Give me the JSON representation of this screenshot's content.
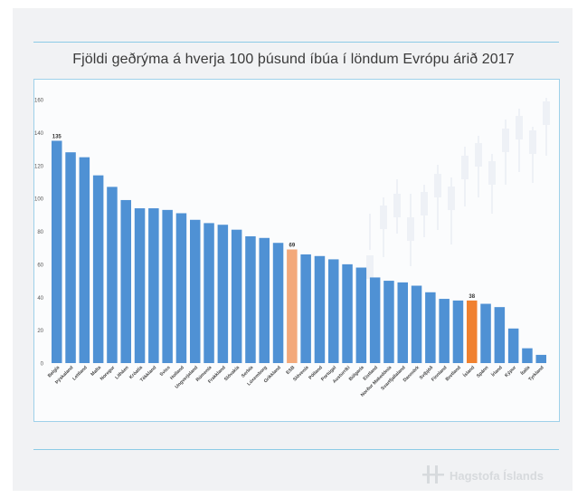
{
  "chart_data": {
    "type": "bar",
    "title": "Fjöldi geðrýma á hverja 100 þúsund íbúa í löndum Evrópu árið 2017",
    "xlabel": "",
    "ylabel": "",
    "ylim": [
      0,
      160
    ],
    "yticks": [
      0,
      20,
      40,
      60,
      80,
      100,
      120,
      140,
      160
    ],
    "grid": false,
    "categories": [
      "Belgía",
      "Þýskaland",
      "Lettland",
      "Malta",
      "Noregur",
      "Litháen",
      "Króatía",
      "Tékkland",
      "Sviss",
      "Holland",
      "Ungverjaland",
      "Rúmenía",
      "Frakkland",
      "Slóvakía",
      "Serbía",
      "Lúxemborg",
      "Grikkland",
      "ESB",
      "Slóvenía",
      "Pólland",
      "Portúgal",
      "Austurríki",
      "Búlgaría",
      "Eistland",
      "Norður Makedónía",
      "Svartfjallaland",
      "Danmörk",
      "Svíþjóð",
      "Finnland",
      "Bretland",
      "Ísland",
      "Spánn",
      "Írland",
      "Kýpur",
      "Ítalía",
      "Tyrkland"
    ],
    "values": [
      135,
      128,
      125,
      114,
      107,
      99,
      94,
      94,
      93,
      91,
      87,
      85,
      84,
      81,
      77,
      76,
      73,
      69,
      66,
      65,
      63,
      60,
      58,
      52,
      50,
      49,
      47,
      43,
      39,
      38,
      38,
      36,
      34,
      21,
      9,
      5
    ],
    "data_labels": [
      {
        "category": "Belgía",
        "text": "135"
      },
      {
        "category": "ESB",
        "text": "69"
      },
      {
        "category": "Ísland",
        "text": "38"
      }
    ],
    "colors": {
      "default": "#4f91d4",
      "ESB": "#f3a97a",
      "Ísland": "#f0812f"
    }
  },
  "branding": {
    "logo_text": "Hagstofa Íslands"
  }
}
